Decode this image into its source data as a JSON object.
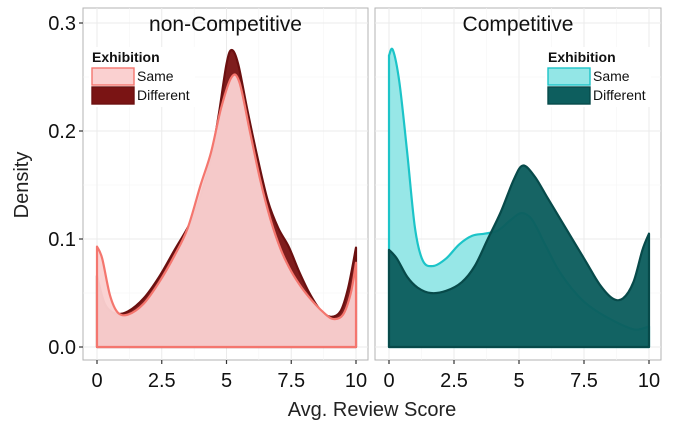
{
  "chart_data": {
    "type": "area",
    "xlabel": "Avg. Review Score",
    "ylabel": "Density",
    "xlim": [
      0,
      10
    ],
    "ylim": [
      0,
      0.3
    ],
    "x_ticks": [
      0,
      2.5,
      5,
      7.5,
      10
    ],
    "x_tick_labels": [
      "0",
      "2.5",
      "5",
      "7.5",
      "10"
    ],
    "y_ticks": [
      0,
      0.1,
      0.2,
      0.3
    ],
    "y_tick_labels": [
      "0.0",
      "0.1",
      "0.2",
      "0.3"
    ],
    "grid": true,
    "panels": [
      {
        "title": "non-Competitive",
        "legend": {
          "title": "Exhibition",
          "position": "top-left"
        },
        "series": [
          {
            "name": "Different",
            "fill": "#7a1414",
            "stroke": "#6b1010",
            "points": [
              [
                0,
                0.066
              ],
              [
                0.3,
                0.04
              ],
              [
                0.7,
                0.031
              ],
              [
                1.2,
                0.033
              ],
              [
                1.8,
                0.045
              ],
              [
                2.4,
                0.065
              ],
              [
                3.0,
                0.09
              ],
              [
                3.6,
                0.115
              ],
              [
                4.0,
                0.14
              ],
              [
                4.4,
                0.175
              ],
              [
                4.7,
                0.215
              ],
              [
                5.0,
                0.262
              ],
              [
                5.2,
                0.275
              ],
              [
                5.45,
                0.262
              ],
              [
                5.8,
                0.22
              ],
              [
                6.2,
                0.175
              ],
              [
                6.6,
                0.135
              ],
              [
                7.0,
                0.11
              ],
              [
                7.4,
                0.093
              ],
              [
                7.8,
                0.07
              ],
              [
                8.2,
                0.05
              ],
              [
                8.6,
                0.035
              ],
              [
                9.0,
                0.028
              ],
              [
                9.4,
                0.033
              ],
              [
                9.7,
                0.055
              ],
              [
                10,
                0.092
              ]
            ]
          },
          {
            "name": "Same",
            "fill": "#fad0d0",
            "stroke": "#f4766e",
            "points": [
              [
                0,
                0.093
              ],
              [
                0.2,
                0.082
              ],
              [
                0.5,
                0.048
              ],
              [
                0.8,
                0.032
              ],
              [
                1.2,
                0.03
              ],
              [
                1.8,
                0.04
              ],
              [
                2.4,
                0.06
              ],
              [
                3.0,
                0.085
              ],
              [
                3.5,
                0.11
              ],
              [
                4.0,
                0.15
              ],
              [
                4.4,
                0.18
              ],
              [
                4.8,
                0.222
              ],
              [
                5.2,
                0.25
              ],
              [
                5.5,
                0.245
              ],
              [
                5.9,
                0.2
              ],
              [
                6.3,
                0.155
              ],
              [
                6.7,
                0.118
              ],
              [
                7.1,
                0.09
              ],
              [
                7.5,
                0.07
              ],
              [
                7.9,
                0.055
              ],
              [
                8.3,
                0.043
              ],
              [
                8.7,
                0.033
              ],
              [
                9.1,
                0.026
              ],
              [
                9.5,
                0.03
              ],
              [
                9.8,
                0.05
              ],
              [
                10,
                0.078
              ]
            ]
          }
        ]
      },
      {
        "title": "Competitive",
        "legend": {
          "title": "Exhibition",
          "position": "top-right"
        },
        "series": [
          {
            "name": "Same",
            "fill": "#93e6e6",
            "stroke": "#1cc4c8",
            "points": [
              [
                0,
                0.27
              ],
              [
                0.15,
                0.275
              ],
              [
                0.4,
                0.245
              ],
              [
                0.7,
                0.18
              ],
              [
                1.0,
                0.11
              ],
              [
                1.3,
                0.08
              ],
              [
                1.7,
                0.075
              ],
              [
                2.2,
                0.082
              ],
              [
                2.7,
                0.095
              ],
              [
                3.2,
                0.103
              ],
              [
                3.7,
                0.105
              ],
              [
                4.2,
                0.108
              ],
              [
                4.7,
                0.118
              ],
              [
                5.1,
                0.124
              ],
              [
                5.5,
                0.118
              ],
              [
                6.0,
                0.095
              ],
              [
                6.5,
                0.072
              ],
              [
                7.0,
                0.055
              ],
              [
                7.5,
                0.042
              ],
              [
                8.0,
                0.033
              ],
              [
                8.5,
                0.026
              ],
              [
                9.0,
                0.02
              ],
              [
                9.5,
                0.016
              ],
              [
                10,
                0.019
              ]
            ]
          },
          {
            "name": "Different",
            "fill": "#0d5e5e",
            "stroke": "#074a4a",
            "points": [
              [
                0,
                0.09
              ],
              [
                0.3,
                0.082
              ],
              [
                0.7,
                0.065
              ],
              [
                1.1,
                0.055
              ],
              [
                1.6,
                0.05
              ],
              [
                2.2,
                0.052
              ],
              [
                2.8,
                0.06
              ],
              [
                3.3,
                0.075
              ],
              [
                3.8,
                0.1
              ],
              [
                4.3,
                0.125
              ],
              [
                4.8,
                0.155
              ],
              [
                5.15,
                0.168
              ],
              [
                5.6,
                0.158
              ],
              [
                6.1,
                0.138
              ],
              [
                6.6,
                0.118
              ],
              [
                7.1,
                0.098
              ],
              [
                7.6,
                0.078
              ],
              [
                8.1,
                0.058
              ],
              [
                8.6,
                0.045
              ],
              [
                9.0,
                0.045
              ],
              [
                9.4,
                0.06
              ],
              [
                9.75,
                0.09
              ],
              [
                10,
                0.105
              ]
            ]
          }
        ]
      }
    ]
  }
}
